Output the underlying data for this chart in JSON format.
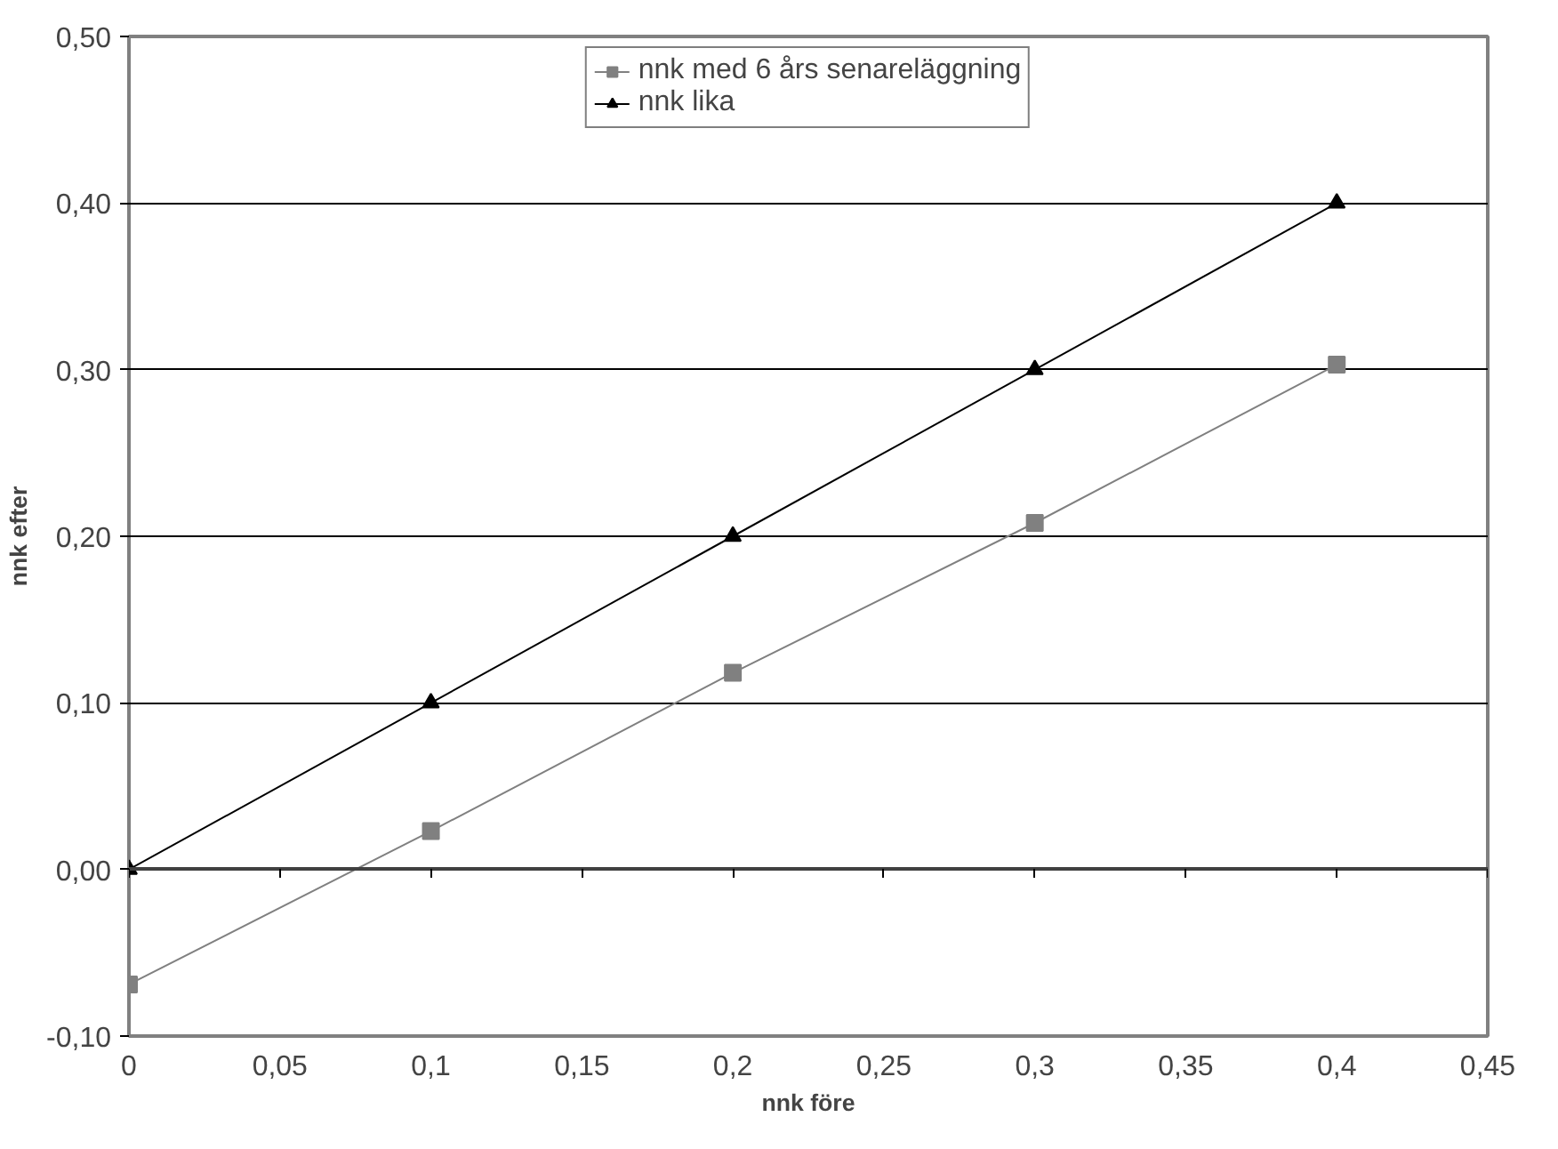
{
  "chart_data": {
    "type": "line",
    "xlabel": "nnk före",
    "ylabel": "nnk efter",
    "x": [
      0,
      0.1,
      0.2,
      0.3,
      0.4
    ],
    "series": [
      {
        "name": "nnk med 6 års senareläggning",
        "color": "#808080",
        "marker": "square",
        "values": [
          -0.069,
          0.023,
          0.118,
          0.208,
          0.303
        ]
      },
      {
        "name": "nnk lika",
        "color": "#000000",
        "marker": "triangle",
        "values": [
          0,
          0.1,
          0.2,
          0.3,
          0.4
        ]
      }
    ],
    "xlim": [
      0,
      0.45
    ],
    "ylim": [
      -0.1,
      0.5
    ],
    "xticks": [
      0,
      {
        "value": 0.05,
        "label": "0,05"
      },
      {
        "value": 0.1,
        "label": "0,1"
      },
      {
        "value": 0.15,
        "label": "0,15"
      },
      {
        "value": 0.2,
        "label": "0,2"
      },
      {
        "value": 0.25,
        "label": "0,25"
      },
      {
        "value": 0.3,
        "label": "0,3"
      },
      {
        "value": 0.35,
        "label": "0,35"
      },
      {
        "value": 0.4,
        "label": "0,4"
      },
      {
        "value": 0.45,
        "label": "0,45"
      }
    ],
    "yticks": [
      {
        "value": -0.1,
        "label": "-0,10"
      },
      {
        "value": 0,
        "label": "0,00"
      },
      {
        "value": 0.1,
        "label": "0,10"
      },
      {
        "value": 0.2,
        "label": "0,20"
      },
      {
        "value": 0.3,
        "label": "0,30"
      },
      {
        "value": 0.4,
        "label": "0,40"
      },
      {
        "value": 0.5,
        "label": "0,50"
      }
    ],
    "grid": "y",
    "legend": "top",
    "line_style": "solid"
  }
}
